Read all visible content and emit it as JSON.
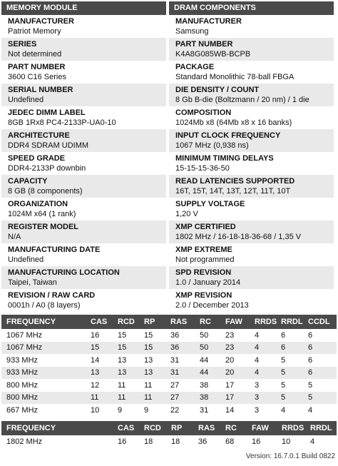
{
  "memory_module": {
    "header": "MEMORY MODULE",
    "fields": [
      {
        "label": "MANUFACTURER",
        "value": "Patriot Memory"
      },
      {
        "label": "SERIES",
        "value": "Not determined"
      },
      {
        "label": "PART NUMBER",
        "value": "3600 C16 Series"
      },
      {
        "label": "SERIAL NUMBER",
        "value": "Undefined"
      },
      {
        "label": "JEDEC DIMM LABEL",
        "value": "8GB 1Rx8 PC4-2133P-UA0-10"
      },
      {
        "label": "ARCHITECTURE",
        "value": "DDR4 SDRAM UDIMM"
      },
      {
        "label": "SPEED GRADE",
        "value": "DDR4-2133P downbin"
      },
      {
        "label": "CAPACITY",
        "value": "8 GB (8 components)"
      },
      {
        "label": "ORGANIZATION",
        "value": "1024M x64 (1 rank)"
      },
      {
        "label": "REGISTER MODEL",
        "value": "N/A"
      },
      {
        "label": "MANUFACTURING DATE",
        "value": "Undefined"
      },
      {
        "label": "MANUFACTURING LOCATION",
        "value": "Taipei, Taiwan"
      },
      {
        "label": "REVISION / RAW CARD",
        "value": "0001h / A0 (8 layers)"
      }
    ]
  },
  "dram_components": {
    "header": "DRAM COMPONENTS",
    "fields": [
      {
        "label": "MANUFACTURER",
        "value": "Samsung"
      },
      {
        "label": "PART NUMBER",
        "value": "K4A8G085WB-BCPB"
      },
      {
        "label": "PACKAGE",
        "value": "Standard Monolithic 78-ball FBGA"
      },
      {
        "label": "DIE DENSITY / COUNT",
        "value": "8 Gb B-die (Boltzmann / 20 nm) / 1 die"
      },
      {
        "label": "COMPOSITION",
        "value": "1024Mb x8 (64Mb x8 x 16 banks)"
      },
      {
        "label": "INPUT CLOCK FREQUENCY",
        "value": "1067 MHz (0,938 ns)"
      },
      {
        "label": "MINIMUM TIMING DELAYS",
        "value": "15-15-15-36-50"
      },
      {
        "label": "READ LATENCIES SUPPORTED",
        "value": "16T, 15T, 14T, 13T, 12T, 11T, 10T"
      },
      {
        "label": "SUPPLY VOLTAGE",
        "value": "1,20 V"
      },
      {
        "label": "XMP CERTIFIED",
        "value": "1802 MHz / 16-18-18-36-68 / 1,35 V"
      },
      {
        "label": "XMP EXTREME",
        "value": "Not programmed"
      },
      {
        "label": "SPD REVISION",
        "value": "1.0 / January 2014"
      },
      {
        "label": "XMP REVISION",
        "value": "2.0 / December 2013"
      }
    ]
  },
  "jedec_table": {
    "columns": [
      "FREQUENCY",
      "CAS",
      "RCD",
      "RP",
      "RAS",
      "RC",
      "FAW",
      "RRDS",
      "RRDL",
      "CCDL"
    ],
    "rows": [
      [
        "1067 MHz",
        "16",
        "15",
        "15",
        "36",
        "50",
        "23",
        "4",
        "6",
        "6"
      ],
      [
        "1067 MHz",
        "15",
        "15",
        "15",
        "36",
        "50",
        "23",
        "4",
        "6",
        "6"
      ],
      [
        "933 MHz",
        "14",
        "13",
        "13",
        "31",
        "44",
        "20",
        "4",
        "5",
        "6"
      ],
      [
        "933 MHz",
        "13",
        "13",
        "13",
        "31",
        "44",
        "20",
        "4",
        "5",
        "6"
      ],
      [
        "800 MHz",
        "12",
        "11",
        "11",
        "27",
        "38",
        "17",
        "3",
        "5",
        "5"
      ],
      [
        "800 MHz",
        "11",
        "11",
        "11",
        "27",
        "38",
        "17",
        "3",
        "5",
        "5"
      ],
      [
        "667 MHz",
        "10",
        "9",
        "9",
        "22",
        "31",
        "14",
        "3",
        "4",
        "4"
      ]
    ]
  },
  "xmp_table": {
    "columns": [
      "FREQUENCY",
      "CAS",
      "RCD",
      "RP",
      "RAS",
      "RC",
      "FAW",
      "RRDS",
      "RRDL"
    ],
    "rows": [
      [
        "1802 MHz",
        "16",
        "18",
        "18",
        "36",
        "68",
        "16",
        "10",
        "4"
      ]
    ]
  },
  "footer": {
    "version": "Version: 16.7.0.1 Build 0822"
  }
}
